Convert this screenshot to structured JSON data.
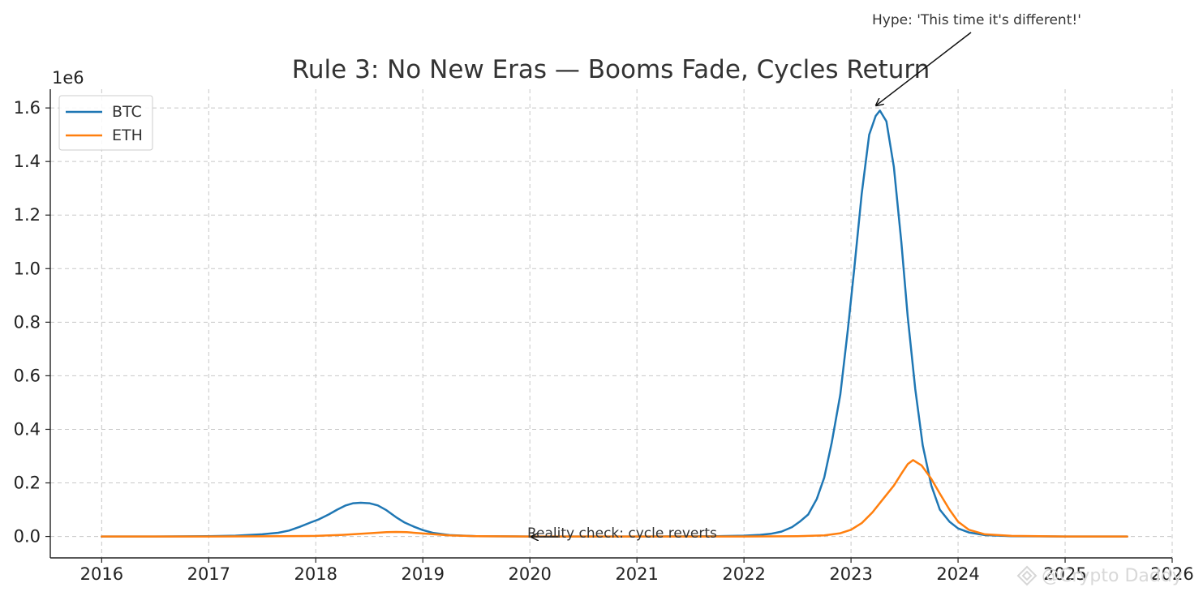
{
  "chart_data": {
    "type": "line",
    "title": "Rule 3: No New Eras — Booms Fade, Cycles Return",
    "xlabel": "",
    "ylabel": "",
    "y_scale_label": "1e6",
    "xlim": [
      2015.52,
      2026.0
    ],
    "ylim": [
      -0.08,
      1.67
    ],
    "x_ticks": [
      2016,
      2017,
      2018,
      2019,
      2020,
      2021,
      2022,
      2023,
      2024,
      2025,
      2026
    ],
    "x_tick_labels": [
      "2016",
      "2017",
      "2018",
      "2019",
      "2020",
      "2021",
      "2022",
      "2023",
      "2024",
      "2025",
      "2026"
    ],
    "y_ticks": [
      0.0,
      0.2,
      0.4,
      0.6,
      0.8,
      1.0,
      1.2,
      1.4,
      1.6
    ],
    "y_tick_labels": [
      "0.0",
      "0.2",
      "0.4",
      "0.6",
      "0.8",
      "1.0",
      "1.2",
      "1.4",
      "1.6"
    ],
    "grid": true,
    "legend_position": "top-left",
    "series": [
      {
        "name": "BTC",
        "color": "#1f77b4",
        "points": [
          [
            2016.0,
            0.0
          ],
          [
            2016.5,
            0.0
          ],
          [
            2017.0,
            0.001
          ],
          [
            2017.25,
            0.003
          ],
          [
            2017.5,
            0.008
          ],
          [
            2017.65,
            0.014
          ],
          [
            2017.75,
            0.022
          ],
          [
            2017.85,
            0.036
          ],
          [
            2017.95,
            0.052
          ],
          [
            2018.03,
            0.064
          ],
          [
            2018.12,
            0.082
          ],
          [
            2018.2,
            0.1
          ],
          [
            2018.28,
            0.116
          ],
          [
            2018.35,
            0.124
          ],
          [
            2018.42,
            0.126
          ],
          [
            2018.5,
            0.124
          ],
          [
            2018.58,
            0.116
          ],
          [
            2018.66,
            0.098
          ],
          [
            2018.75,
            0.072
          ],
          [
            2018.83,
            0.052
          ],
          [
            2018.92,
            0.036
          ],
          [
            2019.0,
            0.024
          ],
          [
            2019.1,
            0.013
          ],
          [
            2019.25,
            0.005
          ],
          [
            2019.5,
            0.001
          ],
          [
            2020.0,
            0.0
          ],
          [
            2021.0,
            0.0
          ],
          [
            2021.75,
            0.001
          ],
          [
            2022.0,
            0.003
          ],
          [
            2022.15,
            0.006
          ],
          [
            2022.25,
            0.01
          ],
          [
            2022.35,
            0.018
          ],
          [
            2022.45,
            0.035
          ],
          [
            2022.52,
            0.055
          ],
          [
            2022.6,
            0.082
          ],
          [
            2022.68,
            0.14
          ],
          [
            2022.75,
            0.22
          ],
          [
            2022.82,
            0.35
          ],
          [
            2022.9,
            0.53
          ],
          [
            2022.97,
            0.77
          ],
          [
            2023.03,
            1.0
          ],
          [
            2023.1,
            1.28
          ],
          [
            2023.17,
            1.5
          ],
          [
            2023.23,
            1.57
          ],
          [
            2023.27,
            1.59
          ],
          [
            2023.33,
            1.55
          ],
          [
            2023.4,
            1.38
          ],
          [
            2023.47,
            1.1
          ],
          [
            2023.53,
            0.82
          ],
          [
            2023.6,
            0.55
          ],
          [
            2023.67,
            0.34
          ],
          [
            2023.75,
            0.19
          ],
          [
            2023.83,
            0.1
          ],
          [
            2023.92,
            0.055
          ],
          [
            2024.0,
            0.03
          ],
          [
            2024.1,
            0.015
          ],
          [
            2024.25,
            0.005
          ],
          [
            2024.5,
            0.001
          ],
          [
            2025.0,
            0.0
          ],
          [
            2025.58,
            0.0
          ]
        ]
      },
      {
        "name": "ETH",
        "color": "#ff7f0e",
        "points": [
          [
            2016.0,
            0.0
          ],
          [
            2017.0,
            0.0
          ],
          [
            2017.5,
            0.0005
          ],
          [
            2018.0,
            0.002
          ],
          [
            2018.25,
            0.006
          ],
          [
            2018.5,
            0.012
          ],
          [
            2018.66,
            0.016
          ],
          [
            2018.75,
            0.017
          ],
          [
            2018.85,
            0.016
          ],
          [
            2019.0,
            0.011
          ],
          [
            2019.25,
            0.004
          ],
          [
            2019.5,
            0.001
          ],
          [
            2020.0,
            0.0
          ],
          [
            2021.0,
            0.0
          ],
          [
            2022.0,
            0.0
          ],
          [
            2022.5,
            0.001
          ],
          [
            2022.75,
            0.004
          ],
          [
            2022.9,
            0.012
          ],
          [
            2023.0,
            0.025
          ],
          [
            2023.1,
            0.05
          ],
          [
            2023.2,
            0.09
          ],
          [
            2023.3,
            0.14
          ],
          [
            2023.4,
            0.19
          ],
          [
            2023.48,
            0.24
          ],
          [
            2023.53,
            0.27
          ],
          [
            2023.58,
            0.285
          ],
          [
            2023.66,
            0.265
          ],
          [
            2023.75,
            0.215
          ],
          [
            2023.83,
            0.16
          ],
          [
            2023.92,
            0.1
          ],
          [
            2024.0,
            0.055
          ],
          [
            2024.1,
            0.025
          ],
          [
            2024.25,
            0.008
          ],
          [
            2024.5,
            0.002
          ],
          [
            2025.0,
            0.0
          ],
          [
            2025.58,
            0.0
          ]
        ]
      }
    ],
    "annotations": [
      {
        "text": "Hype: 'This time it's different!'",
        "target": [
          2023.27,
          1.59
        ]
      },
      {
        "text": "Reality check: cycle reverts",
        "target": [
          2020.0,
          0.0
        ]
      }
    ]
  },
  "watermark": {
    "text": "@Crypto Daddy",
    "icon": "diamond-logo-icon"
  }
}
